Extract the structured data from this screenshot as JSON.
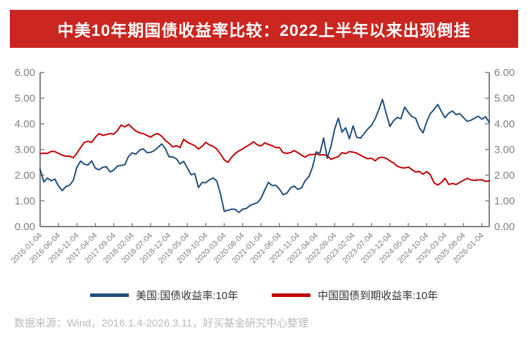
{
  "title": {
    "text": "中美10年期国债收益率比较：2022上半年以来出现倒挂",
    "bg_color": "#CB2520",
    "text_color": "#FFFFFF"
  },
  "footer": {
    "text": "数据来源：Wind，2016.1.4-2026.3.11，好买基金研究中心整理"
  },
  "chart_data": {
    "type": "line",
    "title": "中美10年期国债收益率比较：2022上半年以来出现倒挂",
    "xlabel": "",
    "ylabel": "",
    "ylim": [
      0,
      6
    ],
    "grid": false,
    "legend_position": "bottom",
    "axis_color": "#808080",
    "tick_label_color": "#7F7F7F",
    "y_ticks": [
      "0.00",
      "1.00",
      "2.00",
      "3.00",
      "4.00",
      "5.00",
      "6.00"
    ],
    "x_start": "2016-01-04",
    "x_end": "2026-03-11",
    "frequency": "monthly",
    "x_tick_every": 5,
    "x_tick_labels": [
      "2016-01-04",
      "2016-06-04",
      "2016-11-04",
      "2017-04-04",
      "2017-09-04",
      "2018-02-04",
      "2018-07-04",
      "2018-12-04",
      "2019-05-04",
      "2019-10-04",
      "2020-03-04",
      "2020-08-04",
      "2021-01-04",
      "2021-06-04",
      "2021-11-04",
      "2022-04-04",
      "2022-09-04",
      "2023-02-04",
      "2023-07-04",
      "2023-12-04",
      "2024-05-04",
      "2024-10-04",
      "2025-03-04",
      "2025-08-04",
      "2026-01-04"
    ],
    "series": [
      {
        "name": "美国:国债收益率:10年",
        "color": "#1F4E79",
        "values": [
          2.24,
          1.74,
          1.89,
          1.78,
          1.85,
          1.58,
          1.4,
          1.56,
          1.61,
          1.8,
          2.32,
          2.55,
          2.43,
          2.4,
          2.56,
          2.28,
          2.21,
          2.31,
          2.33,
          2.13,
          2.2,
          2.36,
          2.38,
          2.41,
          2.73,
          2.87,
          2.82,
          2.97,
          3.03,
          2.88,
          2.89,
          2.96,
          3.08,
          3.22,
          3.04,
          2.72,
          2.71,
          2.64,
          2.44,
          2.54,
          2.28,
          2.02,
          2.06,
          1.52,
          1.72,
          1.71,
          1.82,
          1.9,
          1.77,
          1.27,
          0.6,
          0.63,
          0.68,
          0.67,
          0.55,
          0.68,
          0.7,
          0.82,
          0.88,
          0.93,
          1.1,
          1.42,
          1.72,
          1.6,
          1.61,
          1.46,
          1.24,
          1.3,
          1.5,
          1.58,
          1.45,
          1.51,
          1.79,
          1.95,
          2.32,
          2.91,
          2.85,
          3.45,
          2.66,
          3.12,
          3.8,
          4.22,
          3.68,
          3.85,
          3.42,
          3.92,
          3.48,
          3.44,
          3.62,
          3.8,
          3.94,
          4.2,
          4.55,
          4.95,
          4.4,
          3.9,
          4.12,
          4.25,
          4.2,
          4.65,
          4.45,
          4.28,
          4.22,
          3.85,
          3.65,
          4.08,
          4.4,
          4.56,
          4.75,
          4.48,
          4.24,
          4.42,
          4.5,
          4.36,
          4.4,
          4.24,
          4.1,
          4.14,
          4.22,
          4.3,
          4.18,
          4.28,
          4.05
        ]
      },
      {
        "name": "中国国债到期收益率:10年",
        "color": "#C00000",
        "values": [
          2.84,
          2.86,
          2.85,
          2.93,
          2.92,
          2.85,
          2.78,
          2.74,
          2.74,
          2.68,
          2.86,
          3.08,
          3.28,
          3.32,
          3.28,
          3.48,
          3.62,
          3.55,
          3.58,
          3.62,
          3.6,
          3.74,
          3.95,
          3.88,
          3.98,
          3.85,
          3.72,
          3.65,
          3.62,
          3.55,
          3.48,
          3.58,
          3.62,
          3.52,
          3.35,
          3.25,
          3.1,
          3.15,
          3.08,
          3.4,
          3.28,
          3.22,
          3.15,
          3.02,
          3.12,
          3.28,
          3.18,
          3.12,
          3.02,
          2.82,
          2.6,
          2.5,
          2.7,
          2.85,
          2.95,
          3.02,
          3.12,
          3.2,
          3.3,
          3.18,
          3.14,
          3.26,
          3.2,
          3.15,
          3.08,
          3.08,
          2.88,
          2.85,
          2.88,
          2.96,
          2.88,
          2.78,
          2.7,
          2.8,
          2.8,
          2.84,
          2.78,
          2.8,
          2.76,
          2.62,
          2.68,
          2.72,
          2.88,
          2.84,
          2.92,
          2.9,
          2.86,
          2.78,
          2.7,
          2.64,
          2.66,
          2.56,
          2.68,
          2.7,
          2.66,
          2.56,
          2.48,
          2.35,
          2.3,
          2.28,
          2.32,
          2.22,
          2.12,
          2.15,
          2.04,
          2.14,
          2.02,
          1.7,
          1.62,
          1.72,
          1.88,
          1.64,
          1.68,
          1.64,
          1.72,
          1.8,
          1.88,
          1.82,
          1.8,
          1.82,
          1.82,
          1.76,
          1.78
        ]
      }
    ]
  }
}
